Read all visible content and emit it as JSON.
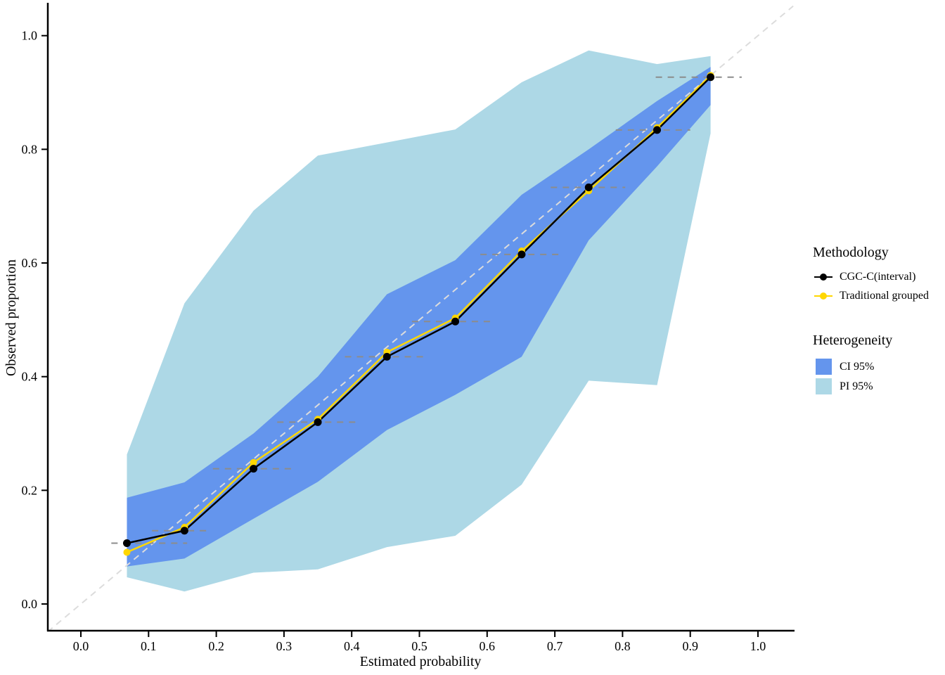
{
  "chart_data": {
    "type": "line",
    "title": "",
    "xlabel": "Estimated probability",
    "ylabel": "Observed proportion",
    "xlim": [
      -0.049,
      1.052
    ],
    "ylim": [
      -0.047,
      1.048
    ],
    "x_ticks": [
      "0.0",
      "0.1",
      "0.2",
      "0.3",
      "0.4",
      "0.5",
      "0.6",
      "0.7",
      "0.8",
      "0.9",
      "1.0"
    ],
    "x_tick_values": [
      0.0,
      0.1,
      0.2,
      0.3,
      0.4,
      0.5,
      0.6,
      0.7,
      0.8,
      0.9,
      1.0
    ],
    "y_ticks": [
      "0.0",
      "0.2",
      "0.4",
      "0.6",
      "0.8",
      "1.0"
    ],
    "y_tick_values": [
      0.0,
      0.2,
      0.4,
      0.6,
      0.8,
      1.0
    ],
    "grid": "off",
    "legend_position": "right",
    "identity_line": {
      "color": "#DCDCDC",
      "dash": "9 7",
      "width": 2
    },
    "bands": [
      {
        "name": "PI 95%",
        "color": "#ADD8E6",
        "x": [
          0.068,
          0.153,
          0.255,
          0.35,
          0.452,
          0.553,
          0.651,
          0.75,
          0.851,
          0.93
        ],
        "upper": [
          0.263,
          0.529,
          0.692,
          0.789,
          0.812,
          0.835,
          0.918,
          0.974,
          0.95,
          0.964
        ],
        "lower": [
          0.047,
          0.022,
          0.055,
          0.061,
          0.1,
          0.12,
          0.21,
          0.393,
          0.385,
          0.828
        ]
      },
      {
        "name": "CI 95%",
        "color": "#6495ED",
        "x": [
          0.068,
          0.153,
          0.255,
          0.35,
          0.452,
          0.553,
          0.651,
          0.75,
          0.851,
          0.93
        ],
        "upper": [
          0.187,
          0.214,
          0.3,
          0.4,
          0.545,
          0.605,
          0.72,
          0.8,
          0.885,
          0.945
        ],
        "lower": [
          0.066,
          0.08,
          0.15,
          0.215,
          0.306,
          0.368,
          0.435,
          0.64,
          0.77,
          0.878
        ]
      }
    ],
    "series": [
      {
        "name": "Traditional grouped",
        "color": "#FFD700",
        "point_radius": 5,
        "x": [
          0.068,
          0.153,
          0.255,
          0.35,
          0.452,
          0.553,
          0.651,
          0.75,
          0.851,
          0.93
        ],
        "y": [
          0.091,
          0.135,
          0.249,
          0.325,
          0.443,
          0.503,
          0.621,
          0.727,
          0.838,
          0.93
        ]
      },
      {
        "name": "CGC-C(interval)",
        "color": "#000000",
        "point_radius": 5.5,
        "x": [
          0.068,
          0.153,
          0.255,
          0.35,
          0.452,
          0.553,
          0.651,
          0.75,
          0.851,
          0.93
        ],
        "y": [
          0.107,
          0.129,
          0.238,
          0.32,
          0.435,
          0.497,
          0.615,
          0.733,
          0.834,
          0.927
        ]
      }
    ],
    "interval_markers": {
      "color": "#8C8C8C",
      "dash": "9 8",
      "width": 2,
      "segments": [
        {
          "x1": 0.045,
          "x2": 0.157,
          "y": 0.107
        },
        {
          "x1": 0.105,
          "x2": 0.19,
          "y": 0.129
        },
        {
          "x1": 0.195,
          "x2": 0.315,
          "y": 0.238
        },
        {
          "x1": 0.29,
          "x2": 0.41,
          "y": 0.32
        },
        {
          "x1": 0.39,
          "x2": 0.513,
          "y": 0.435
        },
        {
          "x1": 0.489,
          "x2": 0.607,
          "y": 0.497
        },
        {
          "x1": 0.59,
          "x2": 0.71,
          "y": 0.615
        },
        {
          "x1": 0.694,
          "x2": 0.804,
          "y": 0.733
        },
        {
          "x1": 0.79,
          "x2": 0.9,
          "y": 0.834
        },
        {
          "x1": 0.849,
          "x2": 0.976,
          "y": 0.927
        }
      ]
    }
  },
  "legend": {
    "methodology": {
      "title": "Methodology",
      "items": [
        {
          "label": "CGC-C(interval)",
          "color": "#000000"
        },
        {
          "label": "Traditional grouped",
          "color": "#FFD700"
        }
      ]
    },
    "heterogeneity": {
      "title": "Heterogeneity",
      "items": [
        {
          "label": "CI 95%",
          "color": "#6495ED"
        },
        {
          "label": "PI 95%",
          "color": "#ADD8E6"
        }
      ]
    }
  }
}
